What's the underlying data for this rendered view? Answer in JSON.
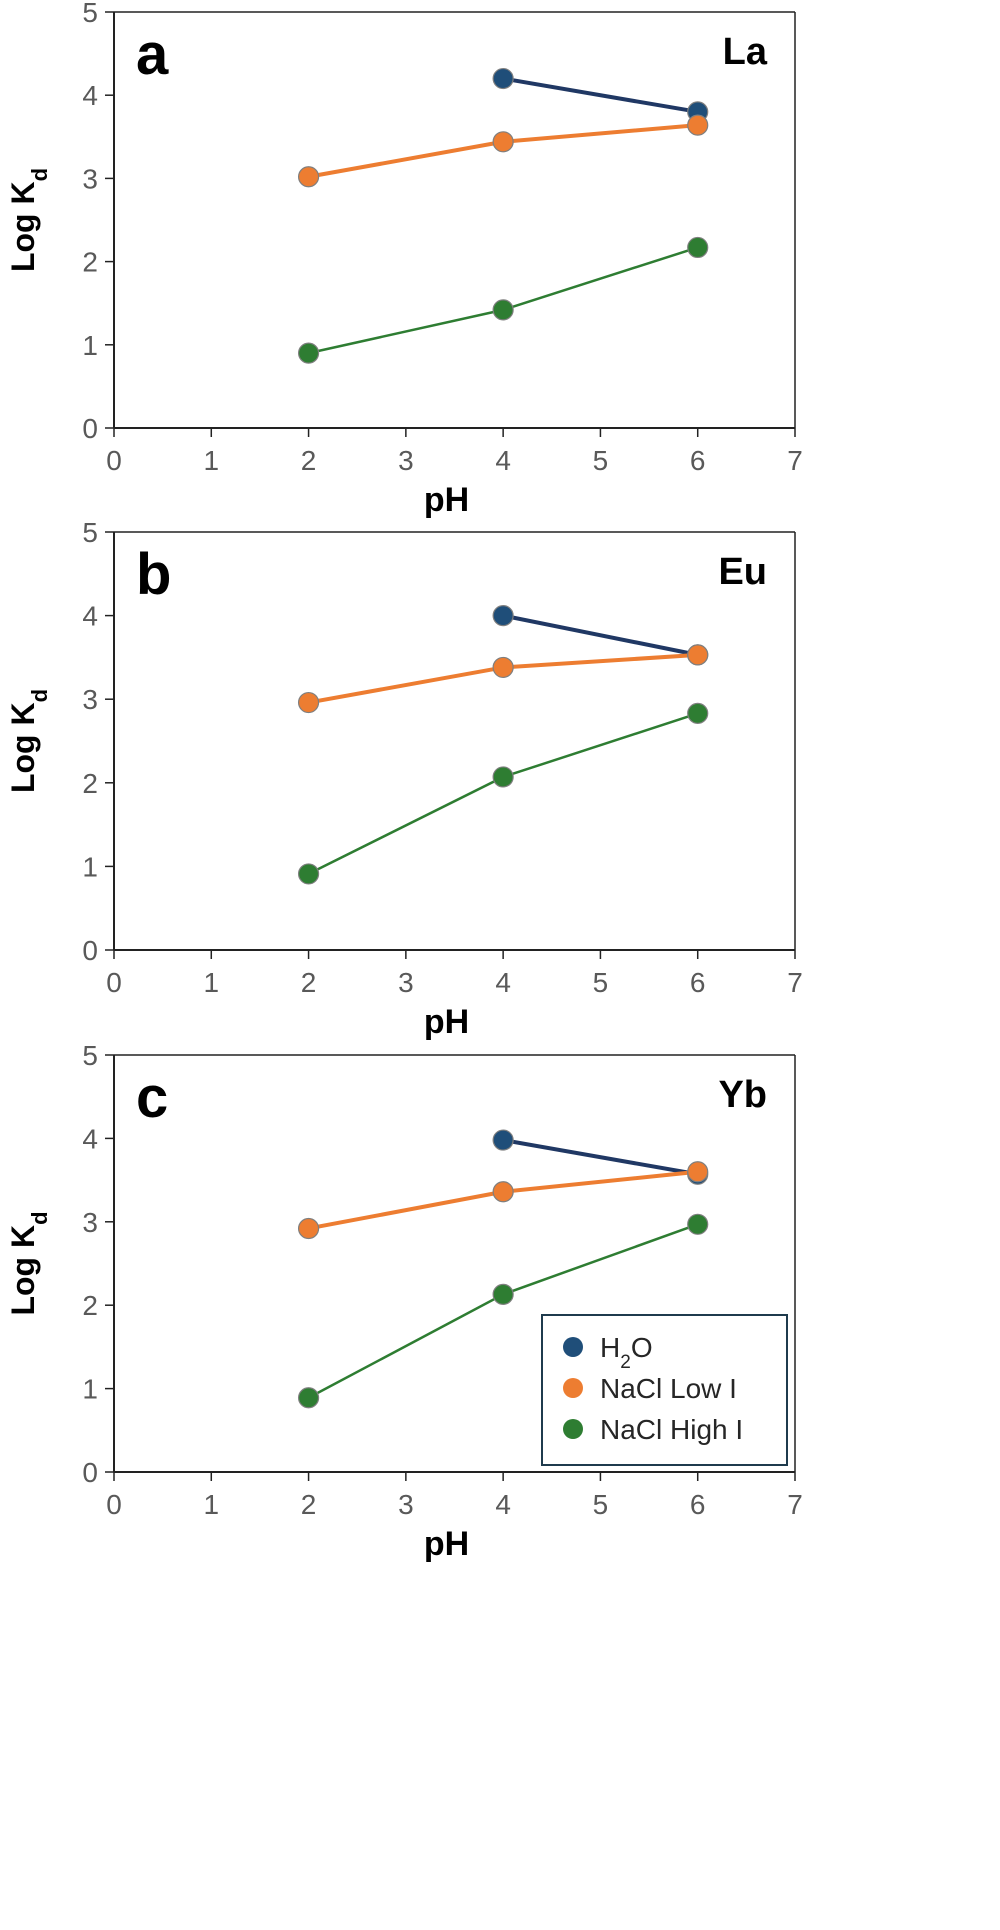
{
  "legend": {
    "entries": [
      {
        "key": "h2o",
        "base": "H",
        "sub": "2",
        "rest": "O"
      },
      {
        "key": "low",
        "label": "NaCl Low I"
      },
      {
        "key": "high",
        "label": "NaCl High I"
      }
    ]
  },
  "chart_data": [
    {
      "type": "line",
      "panel": "a",
      "element": "La",
      "xlabel": "pH",
      "ylabel": {
        "base": "Log K",
        "sub": "d"
      },
      "xlim": [
        0,
        7
      ],
      "ylim": [
        0,
        5
      ],
      "xticks": [
        "0",
        "1",
        "2",
        "3",
        "4",
        "5",
        "6",
        "7"
      ],
      "yticks": [
        "0",
        "1",
        "2",
        "3",
        "4",
        "5"
      ],
      "series": [
        {
          "name": "H2O",
          "color": "#1f4e79",
          "line_color": "#203864",
          "x": [
            4,
            6
          ],
          "y": [
            4.2,
            3.8
          ]
        },
        {
          "name": "NaCl Low I",
          "color": "#ed7d31",
          "line_color": "#ed7d31",
          "x": [
            2,
            4,
            6
          ],
          "y": [
            3.02,
            3.44,
            3.64
          ]
        },
        {
          "name": "NaCl High I",
          "color": "#2e7d32",
          "line_color": "#2e7d32",
          "x": [
            2,
            4,
            6
          ],
          "y": [
            0.9,
            1.42,
            2.17
          ]
        }
      ]
    },
    {
      "type": "line",
      "panel": "b",
      "element": "Eu",
      "xlabel": "pH",
      "ylabel": {
        "base": "Log K",
        "sub": "d"
      },
      "xlim": [
        0,
        7
      ],
      "ylim": [
        0,
        5
      ],
      "xticks": [
        "0",
        "1",
        "2",
        "3",
        "4",
        "5",
        "6",
        "7"
      ],
      "yticks": [
        "0",
        "1",
        "2",
        "3",
        "4",
        "5"
      ],
      "series": [
        {
          "name": "H2O",
          "color": "#1f4e79",
          "line_color": "#203864",
          "x": [
            4,
            6
          ],
          "y": [
            4.0,
            3.53
          ]
        },
        {
          "name": "NaCl Low I",
          "color": "#ed7d31",
          "line_color": "#ed7d31",
          "x": [
            2,
            4,
            6
          ],
          "y": [
            2.96,
            3.38,
            3.53
          ]
        },
        {
          "name": "NaCl High I",
          "color": "#2e7d32",
          "line_color": "#2e7d32",
          "x": [
            2,
            4,
            6
          ],
          "y": [
            0.91,
            2.07,
            2.83
          ]
        }
      ]
    },
    {
      "type": "line",
      "panel": "c",
      "element": "Yb",
      "xlabel": "pH",
      "ylabel": {
        "base": "Log K",
        "sub": "d"
      },
      "xlim": [
        0,
        7
      ],
      "ylim": [
        0,
        5
      ],
      "xticks": [
        "0",
        "1",
        "2",
        "3",
        "4",
        "5",
        "6",
        "7"
      ],
      "yticks": [
        "0",
        "1",
        "2",
        "3",
        "4",
        "5"
      ],
      "series": [
        {
          "name": "H2O",
          "color": "#1f4e79",
          "line_color": "#203864",
          "x": [
            4,
            6
          ],
          "y": [
            3.98,
            3.57
          ]
        },
        {
          "name": "NaCl Low I",
          "color": "#ed7d31",
          "line_color": "#ed7d31",
          "x": [
            2,
            4,
            6
          ],
          "y": [
            2.92,
            3.36,
            3.6
          ]
        },
        {
          "name": "NaCl High I",
          "color": "#2e7d32",
          "line_color": "#2e7d32",
          "x": [
            2,
            4,
            6
          ],
          "y": [
            0.89,
            2.13,
            2.97
          ]
        }
      ]
    }
  ]
}
